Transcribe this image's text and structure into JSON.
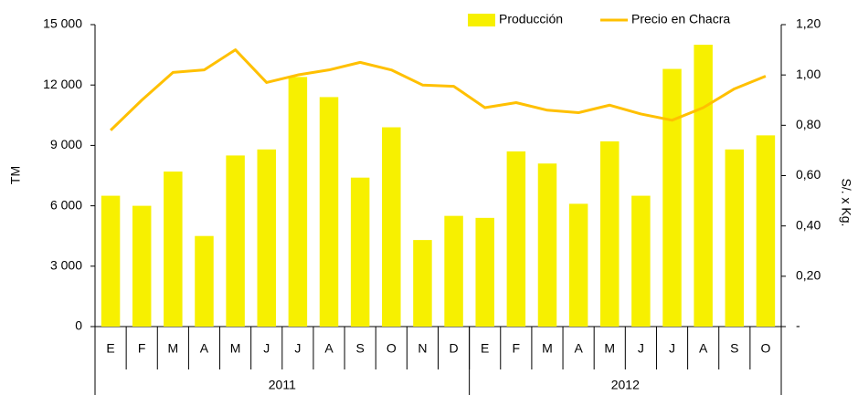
{
  "chart_data": {
    "type": "bar_line",
    "categories": [
      "E",
      "F",
      "M",
      "A",
      "M",
      "J",
      "J",
      "A",
      "S",
      "O",
      "N",
      "D",
      "E",
      "F",
      "M",
      "A",
      "M",
      "J",
      "J",
      "A",
      "S",
      "O"
    ],
    "x_groups": [
      {
        "label": "2011",
        "size": 12
      },
      {
        "label": "2012",
        "size": 10
      }
    ],
    "series": [
      {
        "name": "Producción",
        "color": "#f7f000",
        "kind": "bar",
        "values": [
          6500,
          6000,
          7700,
          4500,
          8500,
          8800,
          12400,
          11400,
          7400,
          9900,
          4300,
          5500,
          5400,
          8700,
          8100,
          6100,
          9200,
          6500,
          12800,
          14000,
          8800,
          9500
        ]
      },
      {
        "name": "Precio en Chacra",
        "color": "#ffc000",
        "kind": "line",
        "axis": "y2",
        "values": [
          0.78,
          0.9,
          1.01,
          1.02,
          1.1,
          0.97,
          1.0,
          1.02,
          1.05,
          1.02,
          0.96,
          0.955,
          0.87,
          0.89,
          0.86,
          0.85,
          0.88,
          0.845,
          0.82,
          0.87,
          0.945,
          0.995
        ]
      }
    ],
    "ylabel": "TM",
    "y2label": "S/. x Kg.",
    "ylim": [
      0,
      15000
    ],
    "yticks": [
      0,
      {
        "value": 3000,
        "label": "3 000"
      },
      {
        "value": 6000,
        "label": "6 000"
      },
      {
        "value": 9000,
        "label": "9 000"
      },
      {
        "value": 12000,
        "label": "12 000"
      },
      {
        "value": 15000,
        "label": "15 000"
      }
    ],
    "y2lim": [
      0,
      1.2
    ],
    "y2ticks": [
      {
        "value": 0,
        "label": "-"
      },
      {
        "value": 0.2,
        "label": "0,20"
      },
      {
        "value": 0.4,
        "label": "0,40"
      },
      {
        "value": 0.6,
        "label": "0,60"
      },
      {
        "value": 0.8,
        "label": "0,80"
      },
      {
        "value": 1.0,
        "label": "1,00"
      },
      {
        "value": 1.2,
        "label": "1,20"
      }
    ],
    "legend": "top-right"
  }
}
